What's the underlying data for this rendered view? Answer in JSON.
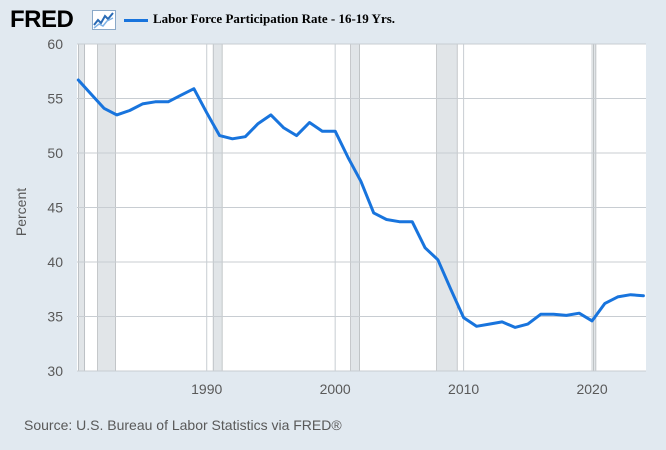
{
  "header": {
    "logo_text": "FRED",
    "logo_icon": "line-chart-icon",
    "legend_label": "Labor Force Participation Rate - 16-19 Yrs."
  },
  "colors": {
    "page_bg": "#e1e9f0",
    "plot_bg": "#ffffff",
    "series": "#1874dd",
    "recession": "#e1e5e8",
    "grid": "#c8cdd2",
    "axis_text": "#595959"
  },
  "source": "Source: U.S. Bureau of Labor Statistics via FRED®",
  "chart_data": {
    "type": "line",
    "title": "",
    "ylabel": "Percent",
    "xlabel": "",
    "xlim": [
      1979.9,
      2024.2
    ],
    "ylim": [
      30,
      60
    ],
    "yticks": [
      30,
      35,
      40,
      45,
      50,
      55,
      60
    ],
    "xticks": [
      1990,
      2000,
      2010,
      2020
    ],
    "grid": true,
    "legend": "top-left",
    "recessions": [
      [
        1980.0,
        1980.5
      ],
      [
        1981.5,
        1982.9
      ],
      [
        1990.5,
        1991.2
      ],
      [
        2001.2,
        2001.9
      ],
      [
        2007.9,
        2009.5
      ],
      [
        2020.1,
        2020.3
      ]
    ],
    "series": [
      {
        "name": "Labor Force Participation Rate - 16-19 Yrs.",
        "x": [
          1980,
          1981,
          1982,
          1983,
          1984,
          1985,
          1986,
          1987,
          1988,
          1989,
          1990,
          1991,
          1992,
          1993,
          1994,
          1995,
          1996,
          1997,
          1998,
          1999,
          2000,
          2001,
          2002,
          2003,
          2004,
          2005,
          2006,
          2007,
          2008,
          2009,
          2010,
          2011,
          2012,
          2013,
          2014,
          2015,
          2016,
          2017,
          2018,
          2019,
          2020,
          2021,
          2022,
          2023,
          2024
        ],
        "y": [
          56.7,
          55.4,
          54.1,
          53.5,
          53.9,
          54.5,
          54.7,
          54.7,
          55.3,
          55.9,
          53.7,
          51.6,
          51.3,
          51.5,
          52.7,
          53.5,
          52.3,
          51.6,
          52.8,
          52.0,
          52.0,
          49.6,
          47.4,
          44.5,
          43.9,
          43.7,
          43.7,
          41.3,
          40.2,
          37.5,
          34.9,
          34.1,
          34.3,
          34.5,
          34.0,
          34.3,
          35.2,
          35.2,
          35.1,
          35.3,
          34.6,
          36.2,
          36.8,
          37.0,
          36.9
        ]
      }
    ]
  }
}
